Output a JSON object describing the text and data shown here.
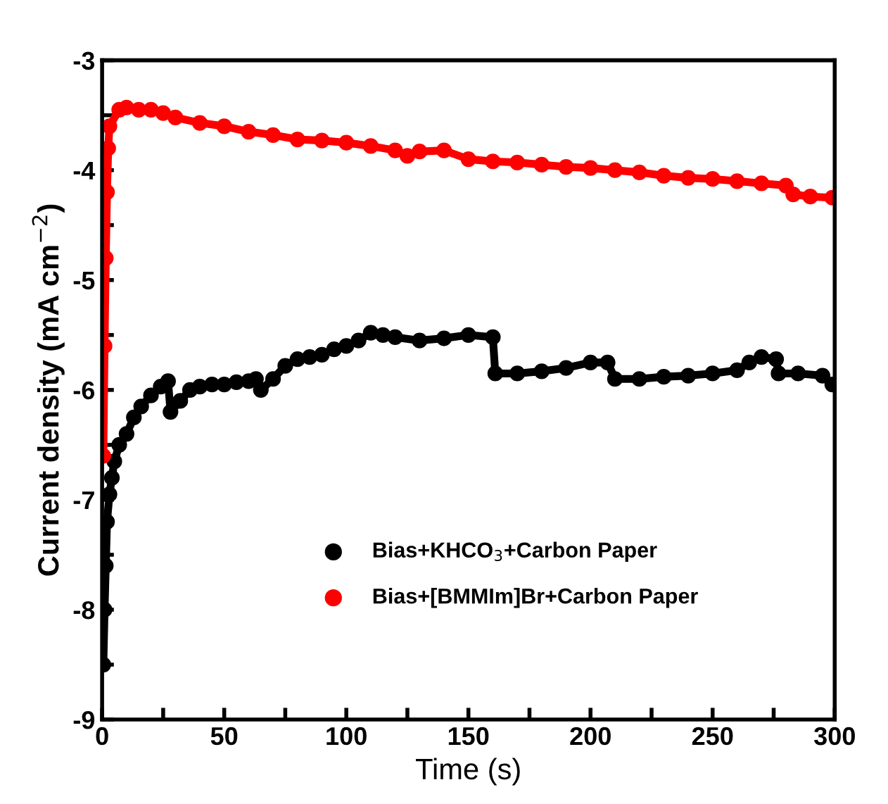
{
  "chart_data": {
    "type": "line",
    "xlabel": "Time (s)",
    "ylabel": "Current density (mA cm$^{−2}$)",
    "xlim": [
      0,
      300
    ],
    "ylim": [
      -9,
      -3
    ],
    "xticks": [
      0,
      {
        "value": 25,
        "label": null
      },
      50,
      {
        "value": 75,
        "label": null
      },
      100,
      {
        "value": 125,
        "label": null
      },
      150,
      {
        "value": 175,
        "label": null
      },
      200,
      {
        "value": 225,
        "label": null
      },
      250,
      {
        "value": 275,
        "label": null
      },
      300
    ],
    "yticks": [
      -9,
      {
        "value": -8.5,
        "label": null
      },
      -8,
      {
        "value": -7.5,
        "label": null
      },
      -7,
      {
        "value": -6.5,
        "label": null
      },
      -6,
      {
        "value": -5.5,
        "label": null
      },
      -5,
      {
        "value": -4.5,
        "label": null
      },
      -4,
      {
        "value": -3.5,
        "label": null
      },
      -3
    ],
    "marker": "circle",
    "grid": false,
    "legend": "bottom",
    "series": [
      {
        "name": "Bias+KHCO$_{3}$+Carbon Paper",
        "color": "#000000",
        "x": [
          0.5,
          1,
          1.5,
          2,
          3,
          4,
          5,
          7,
          10,
          13,
          16,
          20,
          24,
          27,
          28,
          32,
          36,
          40,
          45,
          50,
          55,
          60,
          63,
          65,
          70,
          75,
          80,
          85,
          90,
          95,
          100,
          105,
          110,
          115,
          120,
          130,
          140,
          150,
          160,
          161,
          170,
          180,
          190,
          200,
          207,
          210,
          220,
          230,
          240,
          250,
          260,
          265,
          270,
          276,
          277,
          285,
          295,
          299
        ],
        "values": [
          -8.5,
          -8.0,
          -7.6,
          -7.2,
          -6.95,
          -6.8,
          -6.65,
          -6.5,
          -6.4,
          -6.25,
          -6.15,
          -6.05,
          -5.97,
          -5.92,
          -6.2,
          -6.1,
          -6.0,
          -5.97,
          -5.95,
          -5.95,
          -5.93,
          -5.92,
          -5.9,
          -6.0,
          -5.9,
          -5.78,
          -5.72,
          -5.7,
          -5.68,
          -5.63,
          -5.6,
          -5.55,
          -5.48,
          -5.5,
          -5.52,
          -5.55,
          -5.53,
          -5.5,
          -5.52,
          -5.85,
          -5.85,
          -5.83,
          -5.8,
          -5.75,
          -5.75,
          -5.9,
          -5.9,
          -5.88,
          -5.87,
          -5.85,
          -5.82,
          -5.75,
          -5.7,
          -5.72,
          -5.85,
          -5.85,
          -5.87,
          -5.95
        ]
      },
      {
        "name": "Bias+[BMMIm]Br+Carbon Paper",
        "color": "#ff0000",
        "x": [
          0.5,
          1,
          1.5,
          2,
          2.5,
          3,
          7,
          10,
          15,
          20,
          25,
          30,
          40,
          50,
          60,
          70,
          80,
          90,
          100,
          110,
          120,
          125,
          130,
          140,
          150,
          160,
          170,
          180,
          190,
          200,
          210,
          220,
          230,
          240,
          250,
          260,
          270,
          280,
          283,
          290,
          299
        ],
        "values": [
          -6.6,
          -5.6,
          -4.8,
          -4.2,
          -3.8,
          -3.6,
          -3.45,
          -3.43,
          -3.45,
          -3.45,
          -3.48,
          -3.52,
          -3.57,
          -3.6,
          -3.65,
          -3.68,
          -3.72,
          -3.73,
          -3.75,
          -3.78,
          -3.82,
          -3.87,
          -3.83,
          -3.82,
          -3.9,
          -3.92,
          -3.93,
          -3.95,
          -3.97,
          -3.98,
          -4.0,
          -4.02,
          -4.05,
          -4.07,
          -4.08,
          -4.1,
          -4.12,
          -4.14,
          -4.22,
          -4.24,
          -4.25
        ]
      }
    ]
  }
}
